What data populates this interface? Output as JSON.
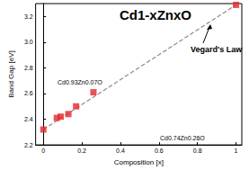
{
  "chart_data": {
    "type": "scatter",
    "title": "Cd1-xZnxO",
    "xlabel": "Composition [x]",
    "ylabel": "Band Gap [eV]",
    "annotations": [
      "Vegard's Law",
      "Cd0.93Zn0.07O",
      "Cd0.74Zn0.26O"
    ],
    "series": [
      {
        "type": "scatter",
        "marker": "square",
        "color": "#e8262b",
        "x": [
          0,
          0.07,
          0.09,
          0.13,
          0.17,
          0.26,
          1
        ],
        "values": [
          2.32,
          2.41,
          2.42,
          2.44,
          2.5,
          2.61,
          3.29
        ]
      },
      {
        "type": "line",
        "line_style": "dashed",
        "color": "#8a8a8a",
        "x": [
          0,
          1
        ],
        "values": [
          2.32,
          3.29
        ]
      }
    ],
    "xlim": [
      -0.04,
      1.03
    ],
    "xticks": [
      0,
      0.2,
      0.4,
      0.6,
      0.8,
      1
    ],
    "ylim": [
      2.2,
      3.3
    ],
    "yticks": [
      {
        "value": 2.2,
        "label": "2.2"
      },
      {
        "value": 2.4,
        "label": "2.4"
      },
      {
        "value": 2.6,
        "label": "2.6"
      },
      {
        "value": 2.8,
        "label": "2.8"
      },
      {
        "value": 3,
        "label": "3.0"
      },
      {
        "value": 3.2,
        "label": "3.2"
      }
    ],
    "grid": false
  }
}
